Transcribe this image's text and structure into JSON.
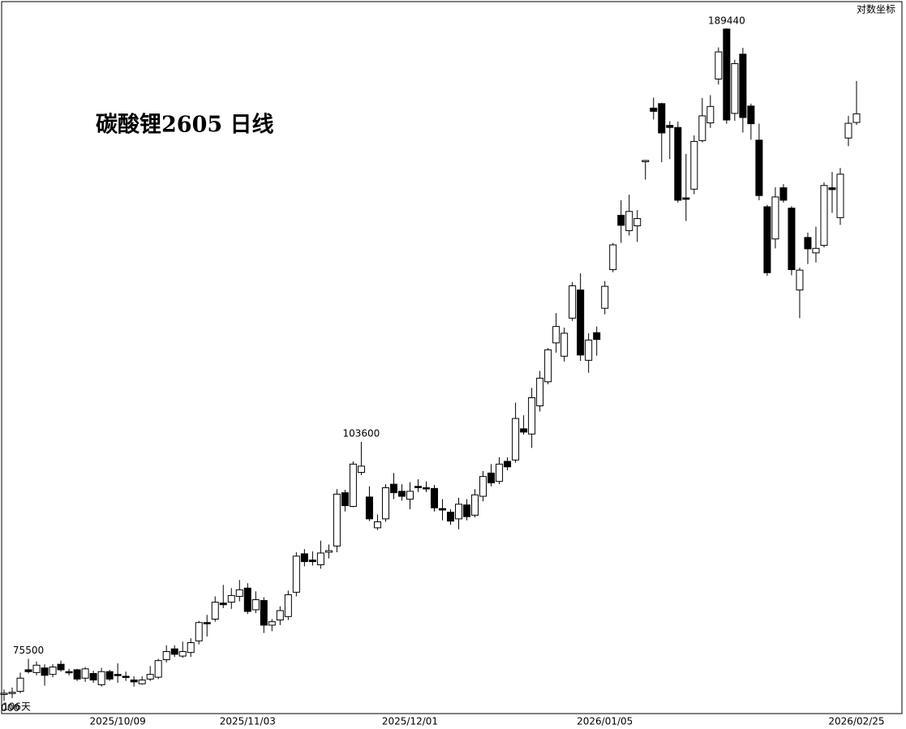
{
  "chart_data": {
    "type": "candlestick",
    "title": "碳酸锂2605 日线",
    "log_scale": true,
    "log_scale_label": "对数坐标",
    "period_label": "106天",
    "up_color": "#ffffff",
    "down_color": "#000000",
    "color": "#000000",
    "ylim": [
      69700,
      197400
    ],
    "categories": [
      null,
      null,
      null,
      null,
      null,
      null,
      null,
      null,
      null,
      null,
      null,
      null,
      null,
      null,
      "2025/10/09",
      null,
      null,
      null,
      null,
      null,
      null,
      null,
      null,
      null,
      null,
      null,
      null,
      null,
      null,
      null,
      "2025/11/03",
      null,
      null,
      null,
      null,
      null,
      null,
      null,
      null,
      null,
      null,
      null,
      null,
      null,
      null,
      null,
      null,
      null,
      null,
      null,
      "2025/12/01",
      null,
      null,
      null,
      null,
      null,
      null,
      null,
      null,
      null,
      null,
      null,
      null,
      null,
      null,
      null,
      null,
      null,
      null,
      null,
      null,
      null,
      null,
      null,
      "2026/01/05",
      null,
      null,
      null,
      null,
      null,
      null,
      null,
      null,
      null,
      null,
      null,
      null,
      null,
      null,
      null,
      null,
      null,
      null,
      null,
      null,
      null,
      null,
      null,
      null,
      null,
      null,
      null,
      null,
      null,
      null,
      "2026/02/25"
    ],
    "open": [
      71700,
      71800,
      72000,
      74300,
      74000,
      74500,
      73800,
      74900,
      74100,
      74300,
      73400,
      73900,
      72700,
      74100,
      73800,
      73600,
      73200,
      72800,
      73300,
      73500,
      75400,
      76600,
      75800,
      76200,
      77500,
      79600,
      80000,
      81900,
      82000,
      82700,
      83700,
      81100,
      82200,
      79300,
      79900,
      80300,
      83200,
      88000,
      87200,
      86600,
      88200,
      89000,
      96200,
      94300,
      99100,
      95600,
      91400,
      92600,
      97400,
      96400,
      95300,
      97100,
      96900,
      96800,
      94000,
      93500,
      92600,
      94500,
      93100,
      95700,
      99000,
      97800,
      100700,
      100900,
      105600,
      104800,
      109200,
      113100,
      119700,
      117400,
      124100,
      129300,
      116700,
      121500,
      125900,
      133200,
      144200,
      141000,
      142000,
      156100,
      168600,
      169700,
      164400,
      163900,
      147900,
      149800,
      160800,
      165000,
      175900,
      189200,
      167300,
      182400,
      169100,
      160900,
      146000,
      139300,
      150100,
      145700,
      129300,
      139600,
      136500,
      138000,
      150100,
      143700,
      161400,
      165100
    ],
    "high": [
      72200,
      72400,
      74000,
      75500,
      75200,
      74900,
      74900,
      75300,
      74400,
      74400,
      74600,
      74200,
      74500,
      74300,
      75000,
      74100,
      73600,
      73600,
      74700,
      75500,
      77000,
      77000,
      77400,
      77800,
      79800,
      80500,
      82700,
      84100,
      83700,
      84700,
      84300,
      83300,
      82600,
      80000,
      81500,
      83400,
      88200,
      88600,
      88300,
      89700,
      89200,
      96700,
      96600,
      100700,
      103600,
      97100,
      93200,
      97400,
      99000,
      97400,
      97700,
      98100,
      97800,
      97300,
      95300,
      93900,
      95500,
      95300,
      96700,
      99300,
      100300,
      101300,
      101300,
      109700,
      107700,
      112100,
      114900,
      118800,
      125000,
      122400,
      130800,
      132500,
      121400,
      122600,
      131000,
      138500,
      147400,
      148600,
      145300,
      156300,
      171200,
      169900,
      165400,
      165300,
      157700,
      162000,
      171100,
      171800,
      184200,
      189440,
      180900,
      184100,
      169700,
      164800,
      146400,
      150200,
      150900,
      146100,
      133600,
      140600,
      141800,
      151300,
      153600,
      154500,
      166700,
      175400
    ],
    "low": [
      71000,
      71300,
      71800,
      73900,
      73700,
      72600,
      73500,
      74100,
      73700,
      73100,
      73000,
      72900,
      72500,
      73100,
      72900,
      73100,
      72500,
      72700,
      73100,
      73300,
      75100,
      75700,
      75600,
      75700,
      77100,
      78000,
      79700,
      81300,
      81200,
      82100,
      80600,
      80700,
      78400,
      78600,
      79300,
      79900,
      82700,
      86400,
      86500,
      86100,
      87400,
      88200,
      93600,
      94200,
      98700,
      92300,
      91100,
      92200,
      95300,
      95100,
      93900,
      96300,
      96300,
      93600,
      92400,
      91800,
      91200,
      92400,
      92800,
      95000,
      97100,
      97400,
      99400,
      100500,
      104700,
      102700,
      108300,
      112700,
      118000,
      116500,
      123600,
      116600,
      114600,
      117500,
      124800,
      132700,
      138500,
      140000,
      138700,
      151900,
      165800,
      155800,
      156500,
      146900,
      143000,
      148700,
      160400,
      163800,
      174500,
      164800,
      165500,
      162700,
      161000,
      147400,
      132000,
      137400,
      146900,
      132100,
      124100,
      134300,
      134600,
      137600,
      144700,
      142200,
      159500,
      164500
    ],
    "close": [
      71800,
      71900,
      73400,
      74100,
      74800,
      73700,
      74600,
      74300,
      74000,
      73300,
      74400,
      73200,
      74100,
      73300,
      73700,
      73500,
      73000,
      73200,
      73800,
      75300,
      76300,
      76000,
      76300,
      77300,
      79600,
      79500,
      82000,
      81700,
      82800,
      83500,
      80900,
      82300,
      79300,
      79700,
      81000,
      82900,
      87700,
      87000,
      87000,
      88100,
      88400,
      96000,
      94400,
      100300,
      100000,
      92600,
      92200,
      96900,
      96200,
      95700,
      96400,
      96900,
      96800,
      94100,
      93800,
      92300,
      94600,
      92900,
      95900,
      98500,
      97600,
      100300,
      99900,
      107200,
      105100,
      110500,
      113700,
      118500,
      122600,
      121400,
      130100,
      117600,
      120200,
      120300,
      130000,
      138100,
      142100,
      145000,
      143500,
      156200,
      167800,
      162600,
      163900,
      147400,
      147600,
      160600,
      166700,
      169000,
      183000,
      165700,
      179900,
      166300,
      164800,
      148400,
      132600,
      148100,
      147400,
      133200,
      133100,
      137300,
      137400,
      150600,
      149700,
      153100,
      164900,
      167200
    ]
  }
}
